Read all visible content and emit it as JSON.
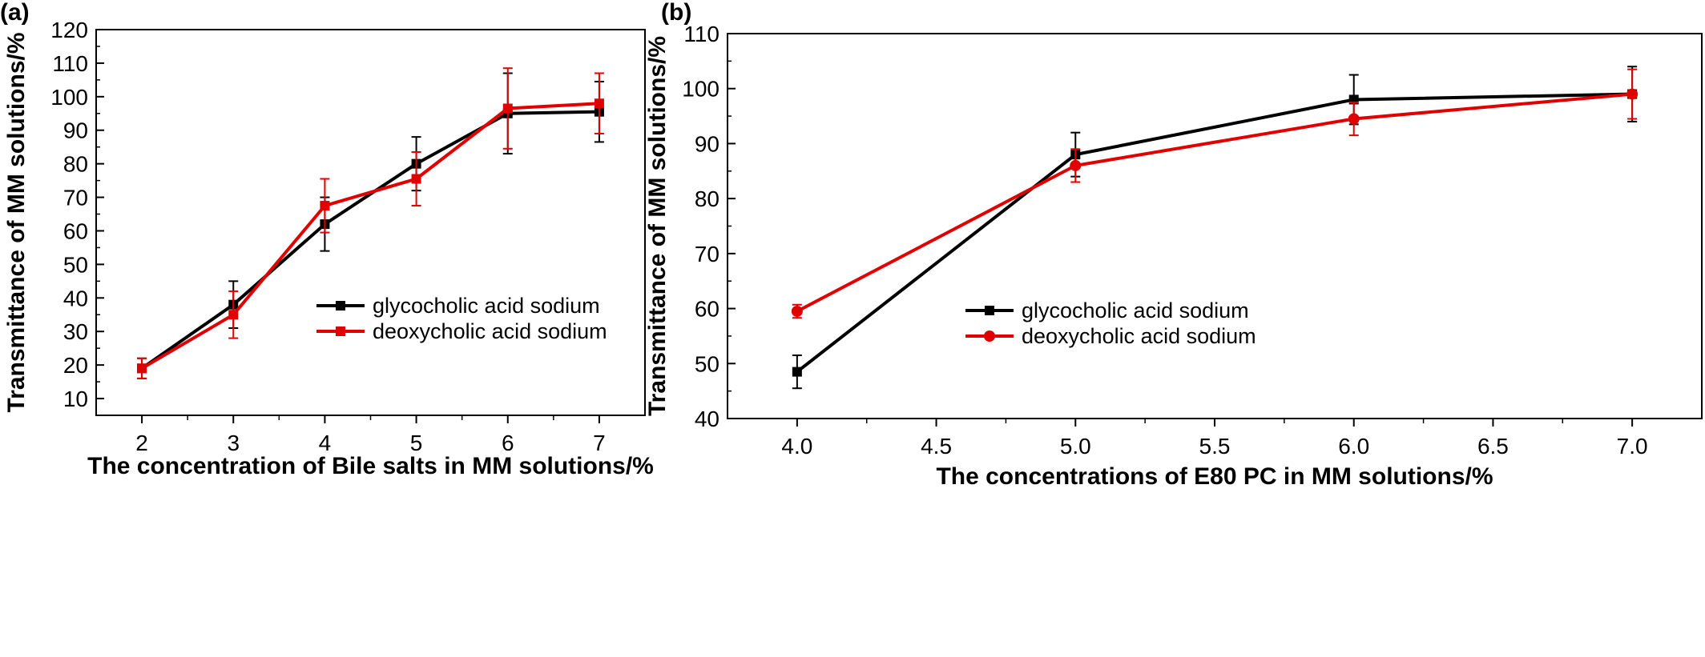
{
  "chart_data": [
    {
      "type": "line",
      "panel_label": "(a)",
      "xlabel": "The concentration of Bile salts in MM solutions/%",
      "ylabel": "Transmittance of MM solutions/%",
      "xlim": [
        1.5,
        7.5
      ],
      "ylim": [
        5,
        120
      ],
      "x_ticks": [
        2,
        3,
        4,
        5,
        6,
        7
      ],
      "x_tick_labels": [
        "2",
        "3",
        "4",
        "5",
        "6",
        "7"
      ],
      "y_ticks": [
        10,
        20,
        30,
        40,
        50,
        60,
        70,
        80,
        90,
        100,
        110,
        120
      ],
      "y_tick_labels": [
        "10",
        "20",
        "30",
        "40",
        "50",
        "60",
        "70",
        "80",
        "90",
        "100",
        "110",
        "120"
      ],
      "legend_position": "middle-right",
      "grid": false,
      "series": [
        {
          "name": "glycocholic acid sodium",
          "color": "#000000",
          "marker": "square",
          "x": [
            2,
            3,
            4,
            5,
            6,
            7
          ],
          "y": [
            19,
            38,
            62,
            80,
            95,
            95.5
          ],
          "err": [
            3,
            7,
            8,
            8,
            12,
            9
          ]
        },
        {
          "name": "deoxycholic acid sodium",
          "color": "#e00000",
          "marker": "square",
          "x": [
            2,
            3,
            4,
            5,
            6,
            7
          ],
          "y": [
            19,
            35,
            67.5,
            75.5,
            96.5,
            98
          ],
          "err": [
            3,
            7,
            8,
            8,
            12,
            9
          ]
        }
      ]
    },
    {
      "type": "line",
      "panel_label": "(b)",
      "xlabel": "The concentrations of E80 PC in MM solutions/%",
      "ylabel": "Transmittance of MM solutions/%",
      "xlim": [
        3.75,
        7.25
      ],
      "ylim": [
        40,
        110
      ],
      "x_ticks": [
        4.0,
        4.5,
        5.0,
        5.5,
        6.0,
        6.5,
        7.0
      ],
      "x_tick_labels": [
        "4.0",
        "4.5",
        "5.0",
        "5.5",
        "6.0",
        "6.5",
        "7.0"
      ],
      "y_ticks": [
        40,
        50,
        60,
        70,
        80,
        90,
        100,
        110
      ],
      "y_tick_labels": [
        "40",
        "50",
        "60",
        "70",
        "80",
        "90",
        "100",
        "110"
      ],
      "legend_position": "lower-right",
      "grid": false,
      "series": [
        {
          "name": "glycocholic acid sodium",
          "color": "#000000",
          "marker": "square",
          "x": [
            4.0,
            5.0,
            6.0,
            7.0
          ],
          "y": [
            48.5,
            88,
            98,
            99
          ],
          "err": [
            3,
            4,
            4.5,
            5
          ]
        },
        {
          "name": "deoxycholic acid sodium",
          "color": "#e00000",
          "marker": "circle",
          "x": [
            4.0,
            5.0,
            6.0,
            7.0
          ],
          "y": [
            59.5,
            86,
            94.5,
            99
          ],
          "err": [
            1.2,
            3,
            3,
            4.5
          ]
        }
      ]
    }
  ]
}
